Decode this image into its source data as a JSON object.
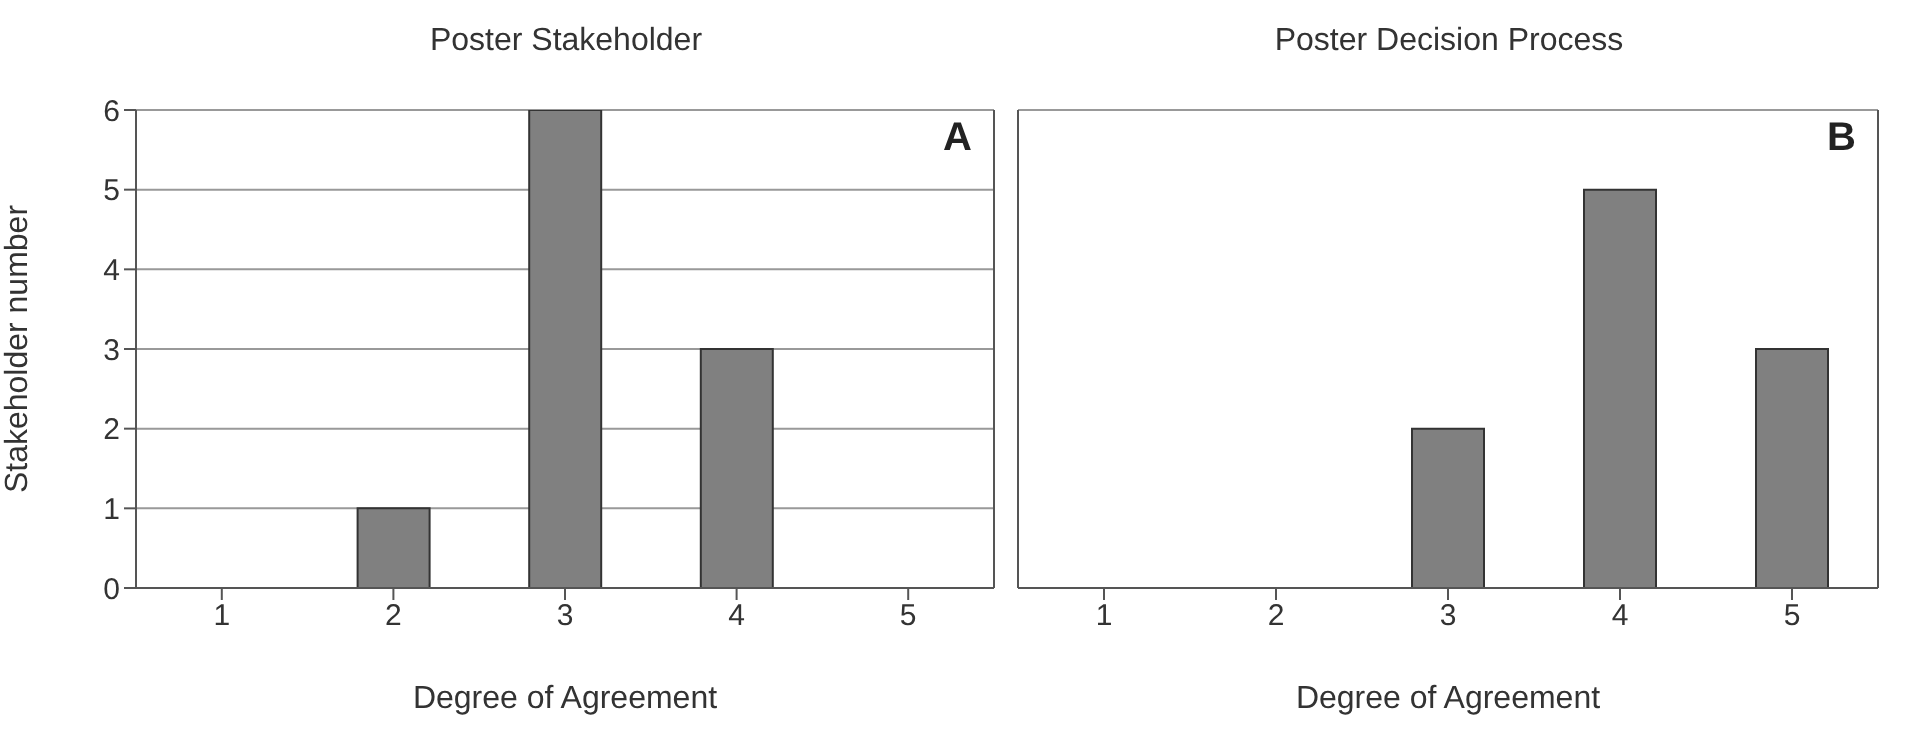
{
  "chart_data": [
    {
      "type": "bar",
      "title": "Poster Stakeholder",
      "xlabel": "Degree of Agreement",
      "ylabel": "Stakeholder number",
      "categories": [
        "1",
        "2",
        "3",
        "4",
        "5"
      ],
      "values": [
        0,
        1,
        6,
        3,
        0
      ],
      "color": "#808080",
      "ylim": [
        0,
        6
      ],
      "yticks": [
        0,
        1,
        2,
        3,
        4,
        5,
        6
      ],
      "grid": "y",
      "annotations": [
        "A"
      ]
    },
    {
      "type": "bar",
      "title": "Poster Decision Process",
      "xlabel": "Degree of Agreement",
      "categories": [
        "1",
        "2",
        "3",
        "4",
        "5"
      ],
      "values": [
        0,
        0,
        2,
        5,
        3
      ],
      "color": "#808080",
      "ylim": [
        0,
        6
      ],
      "yticks": [
        0,
        1,
        2,
        3,
        4,
        5,
        6
      ],
      "grid": "y",
      "tick_labels": "x",
      "annotations": [
        "B"
      ]
    }
  ]
}
